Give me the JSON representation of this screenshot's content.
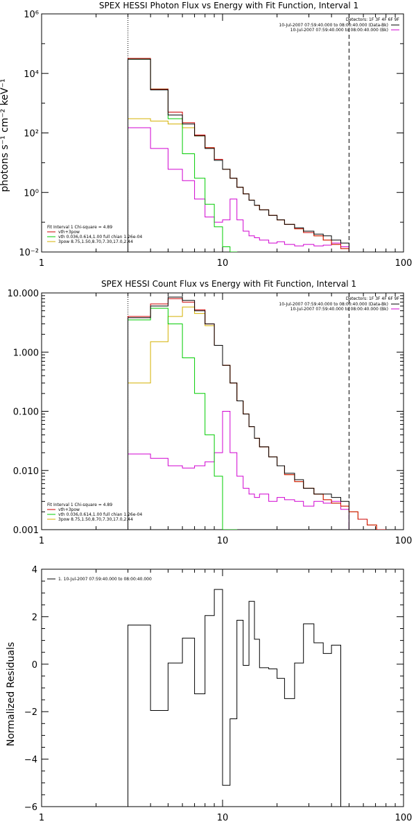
{
  "chart_data": [
    {
      "type": "line",
      "title": "SPEX HESSI Photon Flux vs Energy with Fit Function, Interval 1",
      "ylabel": "photons s⁻¹ cm⁻² keV⁻¹",
      "xlabel": "",
      "x_scale": "log",
      "y_scale": "log",
      "xlim": [
        1,
        100
      ],
      "ylim": [
        0.01,
        1000000
      ],
      "x_ticks": [
        "1",
        "10",
        "100"
      ],
      "y_ticks": [
        "10⁻²",
        "10⁰",
        "10²",
        "10⁴",
        "10⁶"
      ],
      "detectors_label": "Detectors: 1F 3F 4F 6F 9F",
      "legend_right": [
        {
          "text": "10-Jul-2007 07:59:40.000 to 08:00:40.000 (Data-Bk)",
          "color": "#000000"
        },
        {
          "text": "10-Jul-2007 07:59:40.000 to 08:00:40.000 (Bk)",
          "color": "#d000d0"
        }
      ],
      "fit_header": "Fit Interval 1    Chi-square = 4.89",
      "legend_left": [
        {
          "text": "vth+3pow",
          "color": "#cc0000"
        },
        {
          "text": "vth 0.036,0.614,1.00  full chian 1.26e-04",
          "color": "#00cc00"
        },
        {
          "text": "3pow 8.75,1.50,8.70,7.30,17.0,2.44",
          "color": "#d4b000"
        }
      ],
      "vlines": [
        {
          "x": 3,
          "style": "dotted"
        },
        {
          "x": 50,
          "style": "dashed"
        }
      ],
      "edges": [
        3,
        4,
        5,
        6,
        7,
        8,
        9,
        10,
        11,
        12,
        13,
        14,
        15,
        16,
        18,
        20,
        22,
        25,
        28,
        32,
        36,
        40,
        45,
        50
      ],
      "series": [
        {
          "name": "Data-Bk",
          "color": "#000000",
          "values": [
            30000,
            2800,
            400,
            200,
            80,
            30,
            12,
            6,
            3,
            1.5,
            0.9,
            0.55,
            0.37,
            0.26,
            0.17,
            0.12,
            0.085,
            0.065,
            0.05,
            0.04,
            0.035,
            0.025,
            0.02
          ]
        },
        {
          "name": "vth+3pow",
          "color": "#cc0000",
          "values": [
            32000,
            3000,
            500,
            220,
            85,
            32,
            13,
            6,
            3,
            1.5,
            0.9,
            0.55,
            0.37,
            0.26,
            0.17,
            0.12,
            0.085,
            0.06,
            0.045,
            0.035,
            0.025,
            0.018,
            0.013
          ]
        },
        {
          "name": "vth",
          "color": "#00cc00",
          "values": [
            30000,
            3000,
            300,
            20,
            3,
            0.4,
            0.07,
            0.015,
            0.0001
          ]
        },
        {
          "name": "3pow",
          "color": "#d4b000",
          "values": [
            300,
            250,
            200,
            150,
            80,
            32,
            13,
            6,
            3,
            1.5,
            0.9,
            0.55,
            0.37,
            0.26,
            0.17,
            0.12,
            0.085,
            0.06,
            0.045,
            0.035,
            0.025,
            0.018,
            0.013
          ]
        },
        {
          "name": "Bk",
          "color": "#d000d0",
          "values": [
            150,
            30,
            6,
            2.5,
            0.6,
            0.15,
            0.1,
            0.12,
            0.6,
            0.12,
            0.05,
            0.035,
            0.03,
            0.025,
            0.02,
            0.022,
            0.018,
            0.016,
            0.018,
            0.016,
            0.017,
            0.02,
            0.015
          ]
        }
      ]
    },
    {
      "type": "line",
      "title": "SPEX HESSI Count Flux vs Energy with Fit Function, Interval 1",
      "ylabel": "",
      "xlabel": "",
      "x_scale": "log",
      "y_scale": "log",
      "xlim": [
        1,
        100
      ],
      "ylim": [
        0.001,
        10
      ],
      "x_ticks": [
        "1",
        "10",
        "100"
      ],
      "y_ticks": [
        "0.001",
        "0.010",
        "0.100",
        "1.000",
        "10.000"
      ],
      "detectors_label": "Detectors: 1F 3F 4F 6F 9F",
      "legend_right": [
        {
          "text": "10-Jul-2007 07:59:40.000 to 08:00:40.000 (Data-Bk)",
          "color": "#000000"
        },
        {
          "text": "10-Jul-2007 07:59:40.000 to 08:00:40.000 (Bk)",
          "color": "#d000d0"
        }
      ],
      "fit_header": "Fit Interval 1    Chi-square = 4.89",
      "legend_left": [
        {
          "text": "vth+3pow",
          "color": "#cc0000"
        },
        {
          "text": "vth 0.036,0.614,1.00  full chian 1.26e-04",
          "color": "#00cc00"
        },
        {
          "text": "3pow 8.75,1.50,8.70,7.30,17.0,2.44",
          "color": "#d4b000"
        }
      ],
      "vlines": [
        {
          "x": 3,
          "style": "dotted"
        },
        {
          "x": 50,
          "style": "dashed"
        }
      ],
      "edges": [
        3,
        4,
        5,
        6,
        7,
        8,
        9,
        10,
        11,
        12,
        13,
        14,
        15,
        16,
        18,
        20,
        22,
        25,
        28,
        32,
        36,
        40,
        45,
        50,
        56,
        63,
        71,
        80
      ],
      "series": [
        {
          "name": "Data-Bk",
          "color": "#000000",
          "values": [
            3.8,
            6.0,
            8.5,
            7.5,
            5.0,
            3.0,
            1.3,
            0.6,
            0.3,
            0.15,
            0.09,
            0.055,
            0.035,
            0.025,
            0.017,
            0.012,
            0.009,
            0.007,
            0.005,
            0.004,
            0.004,
            0.0035,
            0.003
          ]
        },
        {
          "name": "vth+3pow",
          "color": "#cc0000",
          "values": [
            4.0,
            6.5,
            8.0,
            7.0,
            5.2,
            3.0,
            1.3,
            0.6,
            0.3,
            0.15,
            0.09,
            0.055,
            0.035,
            0.025,
            0.017,
            0.012,
            0.0085,
            0.0065,
            0.005,
            0.004,
            0.0032,
            0.0028,
            0.0025,
            0.002,
            0.0015,
            0.0012,
            0.001
          ]
        },
        {
          "name": "vth",
          "color": "#00cc00",
          "values": [
            3.5,
            5.5,
            3.0,
            0.8,
            0.2,
            0.04,
            0.008,
            0.001,
            0.0005
          ]
        },
        {
          "name": "3pow",
          "color": "#d4b000",
          "values": [
            0.3,
            1.5,
            4.0,
            5.8,
            4.5,
            2.8,
            1.3,
            0.6,
            0.3,
            0.15,
            0.09,
            0.055,
            0.035,
            0.025,
            0.017,
            0.012,
            0.0085,
            0.0065,
            0.005,
            0.004,
            0.0032,
            0.0028,
            0.0025,
            0.002,
            0.0015,
            0.0012,
            0.001
          ]
        },
        {
          "name": "Bk",
          "color": "#d000d0",
          "values": [
            0.019,
            0.016,
            0.012,
            0.011,
            0.012,
            0.014,
            0.02,
            0.1,
            0.02,
            0.008,
            0.005,
            0.004,
            0.0035,
            0.004,
            0.003,
            0.0035,
            0.0032,
            0.003,
            0.0025,
            0.003,
            0.0028,
            0.003,
            0.0022
          ]
        }
      ]
    },
    {
      "type": "line",
      "title": "",
      "ylabel": "Normalized Residuals",
      "xlabel": "",
      "x_scale": "log",
      "y_scale": "linear",
      "xlim": [
        1,
        100
      ],
      "ylim": [
        -6,
        4
      ],
      "x_ticks": [
        "1",
        "10",
        "100"
      ],
      "y_ticks": [
        "−6",
        "−4",
        "−2",
        "0",
        "2",
        "4"
      ],
      "legend_left": [
        {
          "text": "1. 10-Jul-2007 07:59:40.000 to 08:00:40.000",
          "color": "#000000"
        }
      ],
      "edges": [
        3,
        4,
        5,
        6,
        7,
        8,
        9,
        10,
        11,
        12,
        13,
        14,
        15,
        16,
        18,
        20,
        22,
        25,
        28,
        32,
        36,
        40,
        45,
        50
      ],
      "series": [
        {
          "name": "Residuals",
          "color": "#000000",
          "values": [
            1.65,
            -1.95,
            0.05,
            1.1,
            -1.25,
            2.05,
            3.15,
            -5.1,
            -2.3,
            1.85,
            -0.05,
            2.65,
            1.05,
            -0.15,
            -0.2,
            -0.6,
            -1.45,
            0.05,
            1.7,
            0.9,
            0.45,
            0.8
          ]
        }
      ]
    }
  ]
}
